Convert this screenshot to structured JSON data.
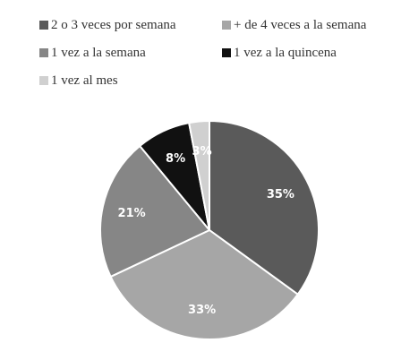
{
  "chart_data": {
    "type": "pie",
    "title": "",
    "categories": [
      "2 o 3 veces por semana",
      "+ de 4 veces a la semana",
      "1 vez a la semana",
      "1 vez a la quincena",
      "1 vez al mes"
    ],
    "values": [
      35,
      33,
      21,
      8,
      3
    ],
    "labels": [
      "35%",
      "33%",
      "21%",
      "8%",
      "3%"
    ],
    "colors": [
      "#5a5a5a",
      "#a6a6a6",
      "#868686",
      "#111111",
      "#d0d0d0"
    ],
    "legend_position": "top",
    "start_angle_deg": 0,
    "direction": "clockwise"
  }
}
